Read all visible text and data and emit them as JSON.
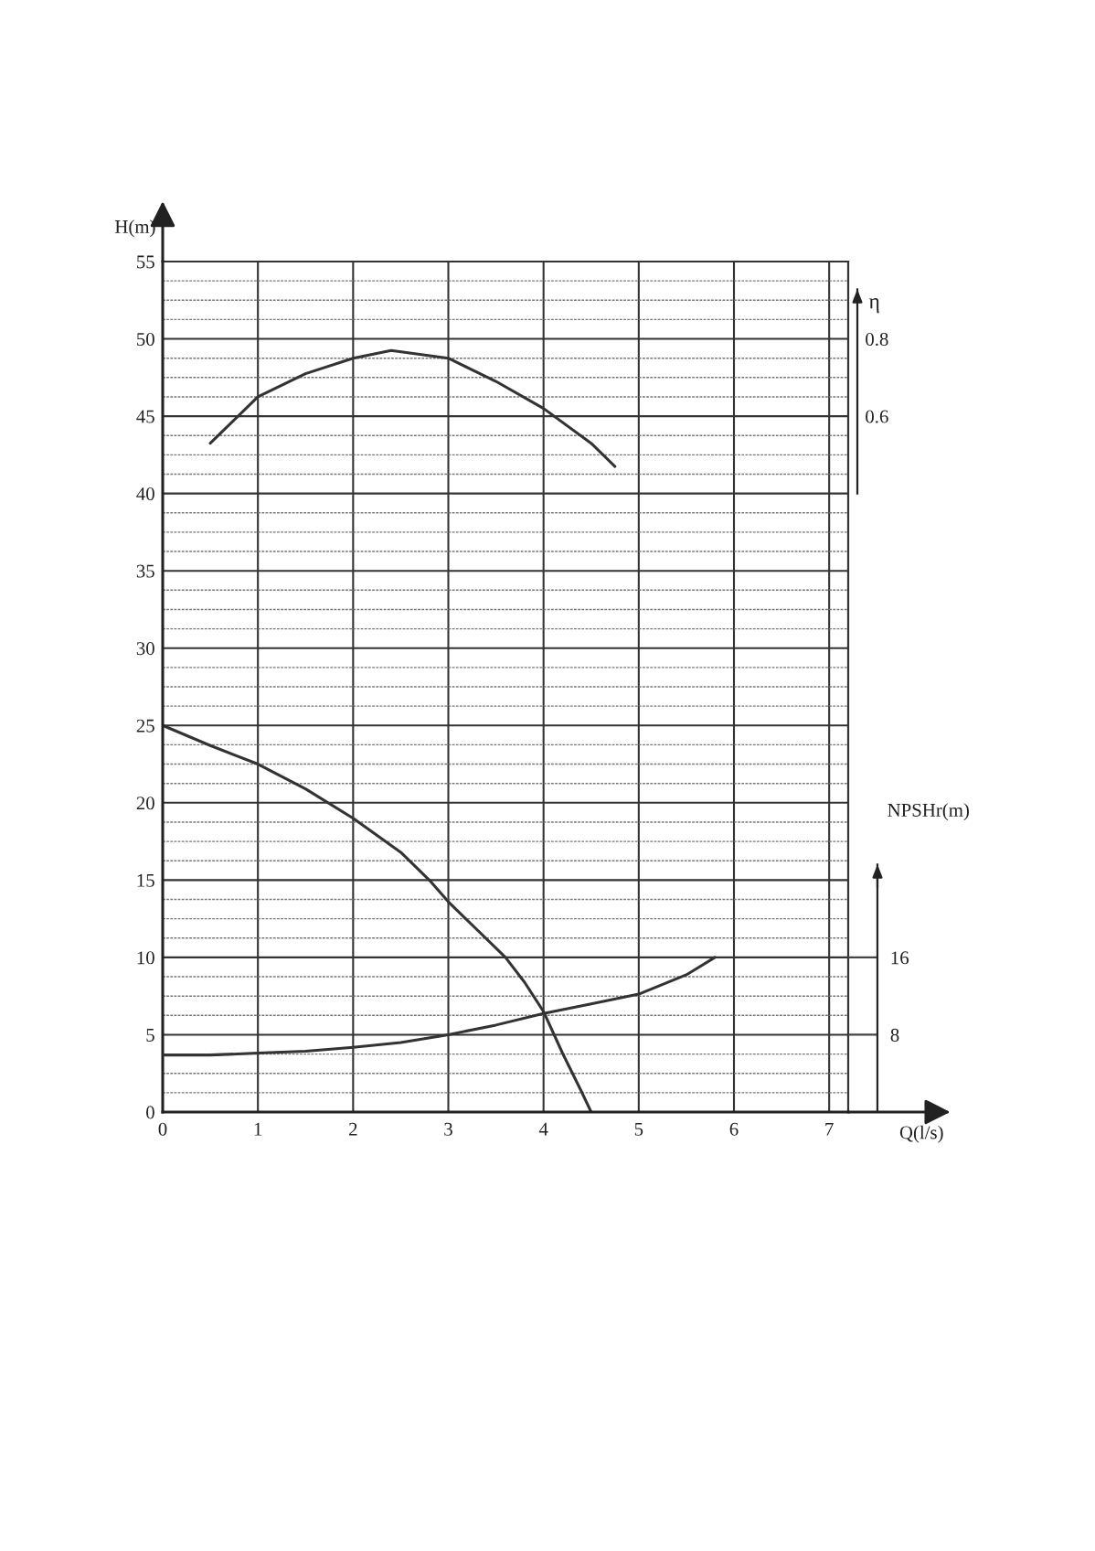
{
  "chart_data": {
    "type": "line",
    "xlabel": "Q(l/s)",
    "ylabel": "H(m)",
    "y2label": "η",
    "y3label": "NPSHr(m)",
    "xlim": [
      0,
      7.2
    ],
    "xticks": [
      0,
      1,
      2,
      3,
      4,
      5,
      6,
      7
    ],
    "ylim": [
      0,
      55
    ],
    "yticks": [
      0,
      5,
      10,
      15,
      20,
      25,
      30,
      35,
      40,
      45,
      50,
      55
    ],
    "y2lim": [
      -1.2,
      1.0
    ],
    "y2ticks": [
      0.6,
      0.8
    ],
    "y3lim": [
      0,
      88
    ],
    "y3ticks": [
      8,
      16
    ],
    "grid": true,
    "series": [
      {
        "color": "#333333",
        "x": [
          0,
          0.5,
          1,
          1.5,
          2,
          2.5,
          2.8,
          3,
          3.3,
          3.6,
          3.8,
          4,
          4.2,
          4.4,
          4.5
        ],
        "values": [
          25,
          23.7,
          22.5,
          20.9,
          19,
          16.8,
          15,
          13.6,
          11.8,
          10,
          8.4,
          6.5,
          3.8,
          1.3,
          0
        ]
      },
      {
        "color": "#333333",
        "axis": "y2",
        "x": [
          0.5,
          1,
          1.5,
          2,
          2.4,
          3,
          3.5,
          4,
          4.5,
          4.75
        ],
        "values": [
          0.53,
          0.65,
          0.71,
          0.75,
          0.77,
          0.75,
          0.69,
          0.62,
          0.53,
          0.47
        ]
      },
      {
        "color": "#333333",
        "axis": "y3",
        "x": [
          0,
          0.5,
          1,
          1.5,
          2,
          2.5,
          3,
          3.5,
          4,
          4.5,
          5,
          5.5,
          5.8
        ],
        "values": [
          5.9,
          5.9,
          6.1,
          6.3,
          6.7,
          7.2,
          8.0,
          9.0,
          10.2,
          11.2,
          12.2,
          14.2,
          16.0
        ]
      }
    ]
  }
}
